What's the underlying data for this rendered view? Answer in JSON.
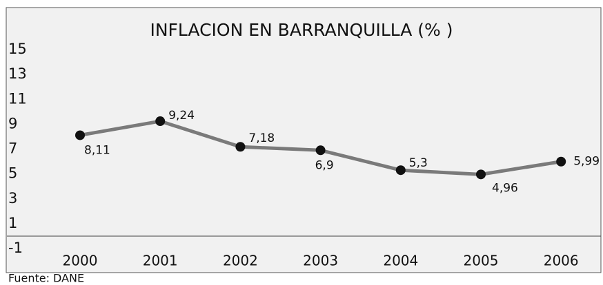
{
  "chart_data": {
    "type": "line",
    "title": "INFLACION EN BARRANQUILLA (% )",
    "categories": [
      "2000",
      "2001",
      "2002",
      "2003",
      "2004",
      "2005",
      "2006"
    ],
    "values": [
      8.11,
      9.24,
      7.18,
      6.9,
      5.3,
      4.96,
      5.99
    ],
    "value_labels": [
      "8,11",
      "9,24",
      "7,18",
      "6,9",
      "5,3",
      "4,96",
      "5,99"
    ],
    "color": "#7a7a7a",
    "marker_color": "#111111",
    "ylim": [
      -1,
      15
    ],
    "yticks": [
      -1,
      1,
      3,
      5,
      7,
      9,
      11,
      13,
      15
    ],
    "source": "Fuente: DANE"
  }
}
